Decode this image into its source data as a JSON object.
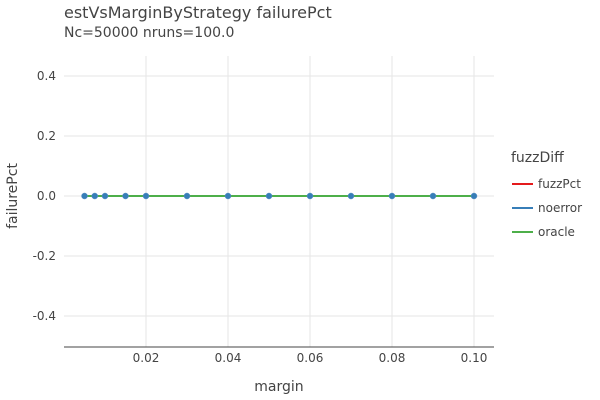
{
  "chart_data": {
    "type": "line",
    "title": "estVsMarginByStrategy failurePct",
    "subtitle": "Nc=50000 nruns=100.0",
    "xlabel": "margin",
    "ylabel": "failurePct",
    "xlim": [
      0.0,
      0.105
    ],
    "ylim": [
      -0.5,
      0.5
    ],
    "x_ticks": [
      0.02,
      0.04,
      0.06,
      0.08,
      0.1
    ],
    "x_tick_labels": [
      "0.02",
      "0.04",
      "0.06",
      "0.08",
      "0.10"
    ],
    "y_ticks": [
      0.4,
      0.2,
      0.0,
      -0.2,
      -0.4
    ],
    "y_tick_labels": [
      "0.4",
      "0.2",
      "0.0",
      "-0.2",
      "-0.4"
    ],
    "grid": true,
    "legend_title": "fuzzDiff",
    "legend_position": "right",
    "x": [
      0.005,
      0.0075,
      0.01,
      0.015,
      0.02,
      0.03,
      0.04,
      0.05,
      0.06,
      0.07,
      0.08,
      0.09,
      0.1
    ],
    "series": [
      {
        "name": "fuzzPct",
        "color": "#e41a1c",
        "values": [
          0,
          0,
          0,
          0,
          0,
          0,
          0,
          0,
          0,
          0,
          0,
          0,
          0
        ]
      },
      {
        "name": "noerror",
        "color": "#377eb8",
        "values": [
          0,
          0,
          0,
          0,
          0,
          0,
          0,
          0,
          0,
          0,
          0,
          0,
          0
        ]
      },
      {
        "name": "oracle",
        "color": "#4daf4a",
        "values": [
          0,
          0,
          0,
          0,
          0,
          0,
          0,
          0,
          0,
          0,
          0,
          0,
          0
        ]
      }
    ],
    "marker_series": "noerror"
  }
}
